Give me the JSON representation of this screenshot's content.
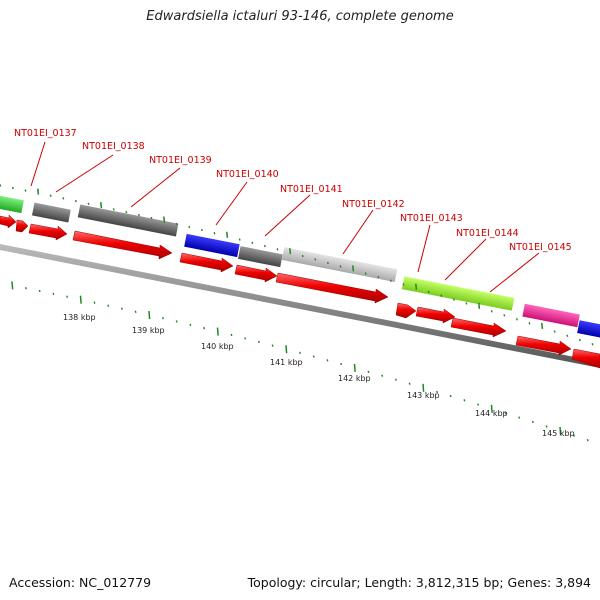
{
  "title": "Edwardsiella ictaluri 93-146, complete genome",
  "accession": "Accession: NC_012779",
  "topology": "Topology: circular; Length: 3,812,315 bp; Genes: 3,894",
  "gene_labels": [
    "NT01EI_0137",
    "NT01EI_0138",
    "NT01EI_0139",
    "NT01EI_0140",
    "NT01EI_0141",
    "NT01EI_0142",
    "NT01EI_0143",
    "NT01EI_0144",
    "NT01EI_0145"
  ],
  "scale_labels": [
    "138 kbp",
    "139 kbp",
    "140 kbp",
    "141 kbp",
    "142 kbp",
    "143 kbp",
    "144 kbp",
    "145 kbp"
  ],
  "colors": {
    "cds": "#ee0000",
    "label": "#cc0000",
    "tick": "#1f8a1f",
    "backbone": "#777777",
    "cog_green": "#33cc33",
    "cog_darkgray": "#666666",
    "cog_blue": "#0000dd",
    "cog_lightgray": "#c8c8c8",
    "cog_lime": "#99ee33",
    "cog_magenta": "#ee2299"
  }
}
